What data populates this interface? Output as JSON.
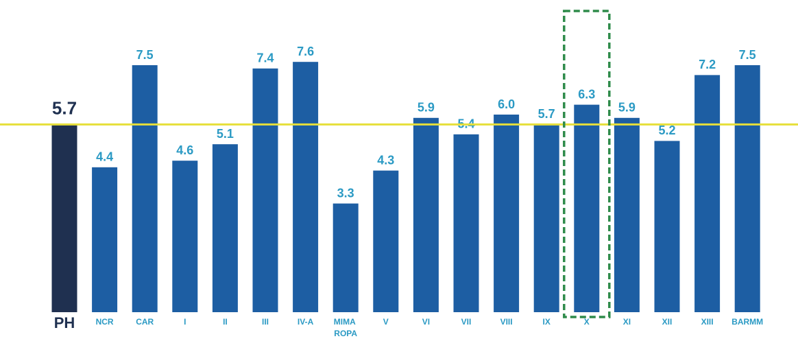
{
  "chart_data": {
    "type": "bar",
    "categories": [
      "PH",
      "NCR",
      "CAR",
      "I",
      "II",
      "III",
      "IV-A",
      "MIMA ROPA",
      "V",
      "VI",
      "VII",
      "VIII",
      "IX",
      "X",
      "XI",
      "XII",
      "XIII",
      "BARMM"
    ],
    "values": [
      5.7,
      4.4,
      7.5,
      4.6,
      5.1,
      7.4,
      7.6,
      3.3,
      4.3,
      5.9,
      5.4,
      6.0,
      5.7,
      6.3,
      5.9,
      5.2,
      7.2,
      7.5
    ],
    "value_labels": [
      "5.7",
      "4.4",
      "7.5",
      "4.6",
      "5.1",
      "7.4",
      "7.6",
      "3.3",
      "4.3",
      "5.9",
      "5.4",
      "6.0",
      "5.7",
      "6.3",
      "5.9",
      "5.2",
      "7.2",
      "7.5"
    ],
    "colors": [
      "#1f3050",
      "#1d5ea3",
      "#1d5ea3",
      "#1d5ea3",
      "#1d5ea3",
      "#1d5ea3",
      "#1d5ea3",
      "#1d5ea3",
      "#1d5ea3",
      "#1d5ea3",
      "#1d5ea3",
      "#1d5ea3",
      "#1d5ea3",
      "#1d5ea3",
      "#1d5ea3",
      "#1d5ea3",
      "#1d5ea3",
      "#1d5ea3"
    ],
    "reference_line_color": "#e6df3a",
    "highlight": "X",
    "highlight_color": "#2e8b4a"
  }
}
